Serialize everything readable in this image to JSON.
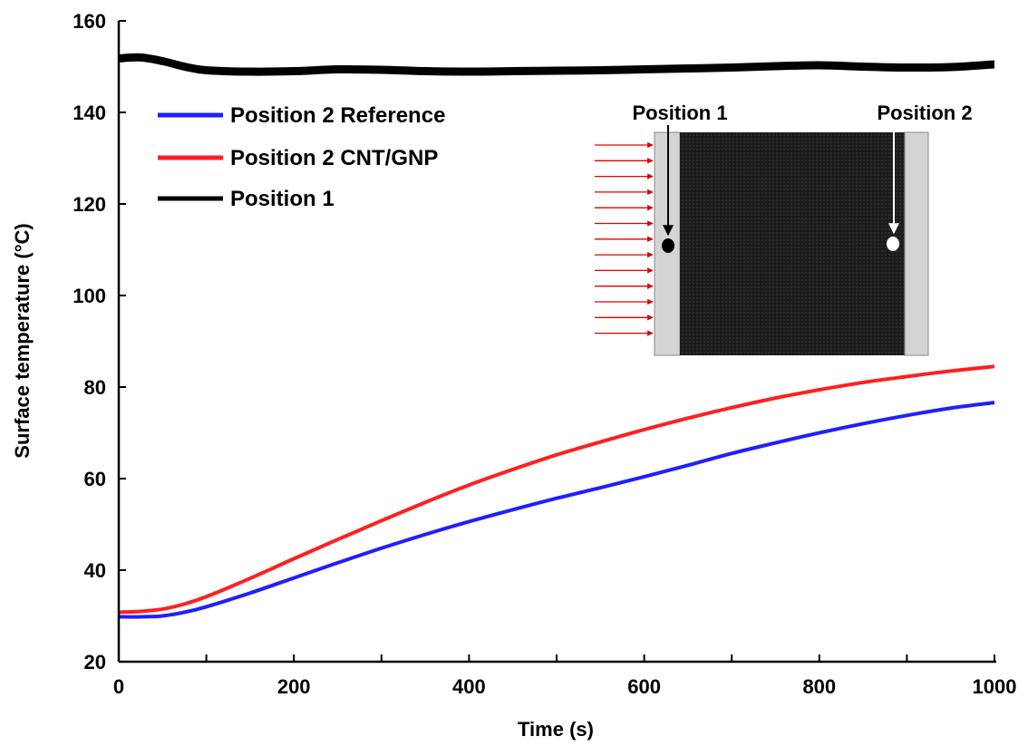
{
  "chart_data": {
    "type": "line",
    "xlabel": "Time (s)",
    "ylabel": "Surface temperature (°C)",
    "xlim": [
      0,
      1000
    ],
    "ylim": [
      20,
      160
    ],
    "xticks": [
      0,
      200,
      400,
      600,
      800,
      1000
    ],
    "yticks": [
      20,
      40,
      60,
      80,
      100,
      120,
      140,
      160
    ],
    "grid": false,
    "legend_position": "top-left",
    "series": [
      {
        "name": "Position 2 Reference",
        "color": "#1f1fff",
        "x": [
          0,
          25,
          50,
          75,
          100,
          150,
          200,
          250,
          300,
          350,
          400,
          450,
          500,
          550,
          600,
          650,
          700,
          750,
          800,
          850,
          900,
          950,
          1000
        ],
        "y": [
          29.8,
          29.8,
          30.0,
          30.8,
          32.0,
          35.0,
          38.3,
          41.6,
          44.8,
          47.8,
          50.6,
          53.2,
          55.7,
          58.0,
          60.4,
          62.9,
          65.5,
          67.8,
          70.0,
          72.0,
          73.8,
          75.4,
          76.6
        ]
      },
      {
        "name": "Position 2 CNT/GNP",
        "color": "#ff1f1f",
        "x": [
          0,
          25,
          50,
          75,
          100,
          150,
          200,
          250,
          300,
          350,
          400,
          450,
          500,
          550,
          600,
          650,
          700,
          750,
          800,
          850,
          900,
          950,
          1000
        ],
        "y": [
          30.8,
          31.0,
          31.5,
          32.6,
          34.2,
          38.2,
          42.5,
          46.7,
          50.8,
          54.8,
          58.6,
          62.0,
          65.2,
          68.0,
          70.7,
          73.2,
          75.5,
          77.6,
          79.4,
          81.0,
          82.3,
          83.5,
          84.5
        ]
      },
      {
        "name": "Position 1",
        "color": "#000000",
        "x": [
          0,
          25,
          50,
          75,
          100,
          150,
          200,
          250,
          300,
          350,
          400,
          450,
          500,
          550,
          600,
          650,
          700,
          750,
          800,
          850,
          900,
          950,
          1000
        ],
        "y": [
          151.8,
          152.0,
          151.2,
          150.0,
          149.2,
          148.9,
          149.0,
          149.4,
          149.3,
          149.0,
          148.9,
          149.0,
          149.1,
          149.2,
          149.4,
          149.6,
          149.8,
          150.1,
          150.3,
          150.0,
          149.8,
          149.9,
          150.5
        ]
      }
    ]
  },
  "inset": {
    "label_position_1": "Position 1",
    "label_position_2": "Position 2"
  }
}
